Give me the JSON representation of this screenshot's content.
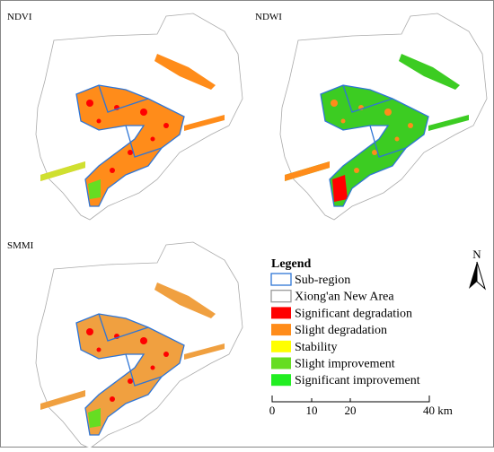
{
  "panels": [
    {
      "label": "NDVI"
    },
    {
      "label": "NDWI"
    },
    {
      "label": "SMMI"
    }
  ],
  "legend": {
    "title": "Legend",
    "items": [
      {
        "label": "Sub-region",
        "color": "#2e75d6"
      },
      {
        "label": "Xiong'an New Area",
        "color": "#9a9a9a"
      },
      {
        "label": "Significant degradation",
        "color": "#ff0000"
      },
      {
        "label": "Slight degradation",
        "color": "#ff8c1a"
      },
      {
        "label": "Stability",
        "color": "#ffff00"
      },
      {
        "label": "Slight improvement",
        "color": "#66dd22"
      },
      {
        "label": "Significant improvement",
        "color": "#22ee22"
      }
    ]
  },
  "north_arrow": {
    "label": "N"
  },
  "scale_bar": {
    "labels": [
      "0",
      "10",
      "20",
      "40 km"
    ]
  }
}
